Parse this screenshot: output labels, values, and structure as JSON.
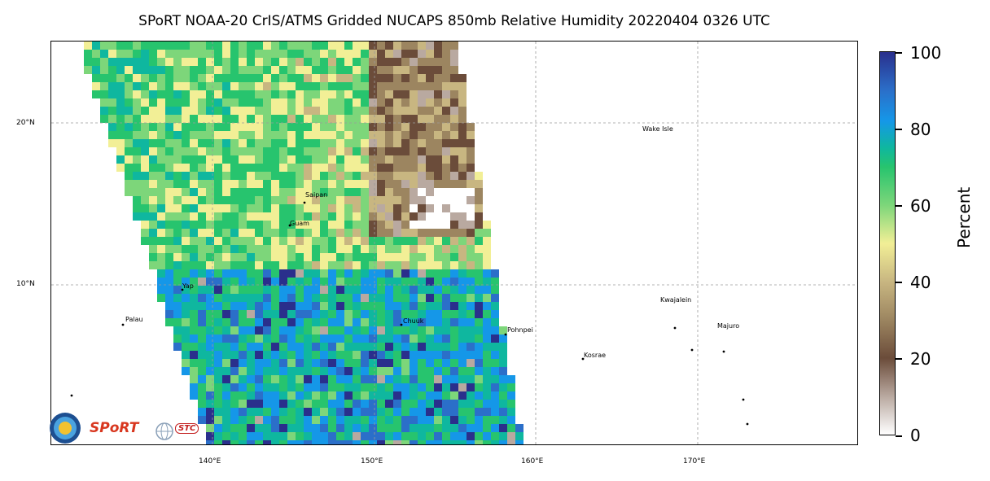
{
  "title": "SPoRT NOAA-20 CrIS/ATMS Gridded NUCAPS 850mb Relative Humidity 20220404 0326 UTC",
  "map": {
    "lat_labels": [
      "20°N",
      "10°N"
    ],
    "lon_labels": [
      "140°E",
      "150°E",
      "160°E",
      "170°E"
    ],
    "places": [
      "Wake Isle",
      "Saipan",
      "Guam",
      "Yap",
      "Palau",
      "Chuuk",
      "Pohnpei",
      "Kwajalein",
      "Majuro",
      "Kosrae"
    ]
  },
  "colorbar": {
    "label": "Percent",
    "ticks": [
      "0",
      "20",
      "40",
      "60",
      "80",
      "100"
    ],
    "colors": [
      "#ffffff",
      "#b9a9a0",
      "#6b4c3a",
      "#9c8560",
      "#c8b681",
      "#f2ef96",
      "#7dd67a",
      "#27c46e",
      "#0fb79f",
      "#1597e8",
      "#2b6fc9",
      "#2a2f8c"
    ]
  },
  "logos": {
    "sport": "SPoRT",
    "stc": "STC"
  }
}
